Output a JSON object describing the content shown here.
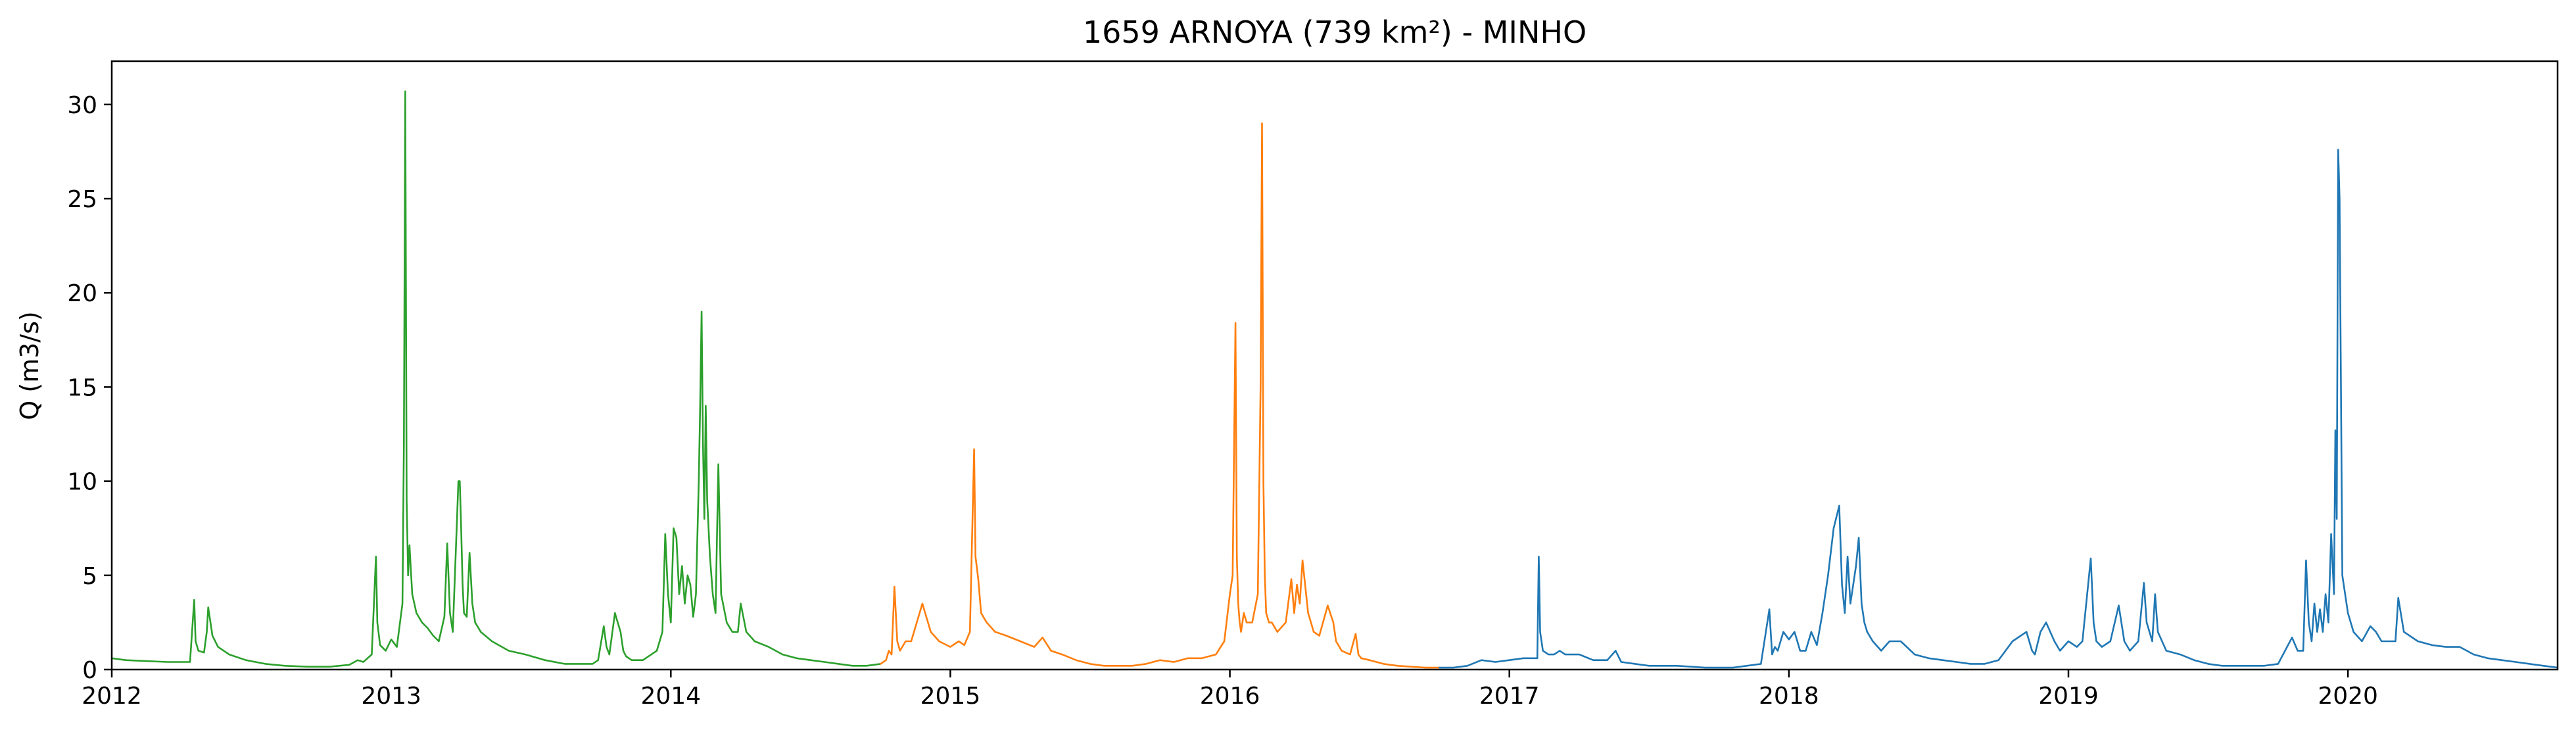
{
  "chart_data": {
    "type": "line",
    "title": "1659 ARNOYA (739 km²) - MINHO",
    "xlabel": "",
    "ylabel": "Q (m3/s)",
    "xlim": [
      2012.0,
      2020.75
    ],
    "ylim": [
      0,
      32.3
    ],
    "x_ticks": [
      2012,
      2013,
      2014,
      2015,
      2016,
      2017,
      2018,
      2019,
      2020
    ],
    "y_ticks": [
      0,
      5,
      10,
      15,
      20,
      25,
      30
    ],
    "grid": false,
    "legend": "none",
    "series": [
      {
        "color": "#2ca02c",
        "x": [
          2012.0,
          2012.05,
          2012.12,
          2012.2,
          2012.28,
          2012.295,
          2012.3,
          2012.31,
          2012.33,
          2012.34,
          2012.345,
          2012.36,
          2012.38,
          2012.42,
          2012.48,
          2012.55,
          2012.62,
          2012.7,
          2012.78,
          2012.85,
          2012.88,
          2012.9,
          2012.93,
          2012.945,
          2012.95,
          2012.96,
          2012.98,
          2013.0,
          2013.02,
          2013.04,
          2013.045,
          2013.05,
          2013.055,
          2013.06,
          2013.065,
          2013.075,
          2013.09,
          2013.11,
          2013.13,
          2013.15,
          2013.17,
          2013.19,
          2013.2,
          2013.21,
          2013.22,
          2013.235,
          2013.24,
          2013.245,
          2013.25,
          2013.255,
          2013.26,
          2013.27,
          2013.28,
          2013.29,
          2013.3,
          2013.32,
          2013.36,
          2013.42,
          2013.48,
          2013.55,
          2013.62,
          2013.68,
          2013.72,
          2013.74,
          2013.76,
          2013.77,
          2013.78,
          2013.8,
          2013.82,
          2013.83,
          2013.84,
          2013.86,
          2013.9,
          2013.95,
          2013.97,
          2013.98,
          2013.99,
          2014.0,
          2014.01,
          2014.02,
          2014.03,
          2014.04,
          2014.05,
          2014.06,
          2014.07,
          2014.08,
          2014.09,
          2014.1,
          2014.105,
          2014.11,
          2014.115,
          2014.12,
          2014.125,
          2014.13,
          2014.14,
          2014.15,
          2014.16,
          2014.17,
          2014.18,
          2014.2,
          2014.22,
          2014.24,
          2014.25,
          2014.27,
          2014.3,
          2014.35,
          2014.4,
          2014.45,
          2014.5,
          2014.55,
          2014.6,
          2014.65,
          2014.7,
          2014.75
        ],
        "values": [
          0.6,
          0.5,
          0.45,
          0.4,
          0.4,
          3.7,
          1.5,
          1.0,
          0.9,
          2.0,
          3.3,
          1.8,
          1.2,
          0.8,
          0.5,
          0.3,
          0.2,
          0.15,
          0.15,
          0.25,
          0.5,
          0.4,
          0.8,
          6.0,
          2.5,
          1.3,
          1.0,
          1.6,
          1.2,
          3.5,
          12.0,
          30.7,
          9.0,
          5.0,
          6.6,
          4.0,
          3.0,
          2.5,
          2.2,
          1.8,
          1.5,
          2.8,
          6.7,
          3.0,
          2.0,
          8.0,
          10.0,
          10.0,
          7.5,
          4.5,
          3.0,
          2.8,
          6.2,
          3.5,
          2.5,
          2.0,
          1.5,
          1.0,
          0.8,
          0.5,
          0.3,
          0.3,
          0.3,
          0.5,
          2.3,
          1.2,
          0.8,
          3.0,
          2.0,
          1.0,
          0.7,
          0.5,
          0.5,
          1.0,
          2.0,
          7.2,
          4.0,
          2.5,
          7.5,
          7.0,
          4.0,
          5.5,
          3.5,
          5.0,
          4.5,
          2.8,
          4.0,
          10.0,
          14.0,
          19.0,
          12.0,
          8.0,
          14.0,
          9.0,
          6.0,
          4.0,
          3.0,
          10.9,
          4.0,
          2.5,
          2.0,
          2.0,
          3.5,
          2.0,
          1.5,
          1.2,
          0.8,
          0.6,
          0.5,
          0.4,
          0.3,
          0.2,
          0.2,
          0.3
        ]
      },
      {
        "color": "#ff7f0e",
        "x": [
          2014.75,
          2014.77,
          2014.78,
          2014.79,
          2014.8,
          2014.81,
          2014.82,
          2014.84,
          2014.86,
          2014.88,
          2014.9,
          2014.93,
          2014.96,
          2015.0,
          2015.03,
          2015.05,
          2015.07,
          2015.085,
          2015.09,
          2015.1,
          2015.11,
          2015.13,
          2015.16,
          2015.2,
          2015.25,
          2015.3,
          2015.33,
          2015.36,
          2015.4,
          2015.45,
          2015.5,
          2015.55,
          2015.6,
          2015.65,
          2015.7,
          2015.75,
          2015.8,
          2015.85,
          2015.9,
          2015.95,
          2015.98,
          2016.0,
          2016.01,
          2016.02,
          2016.025,
          2016.03,
          2016.035,
          2016.04,
          2016.05,
          2016.06,
          2016.08,
          2016.1,
          2016.11,
          2016.115,
          2016.12,
          2016.125,
          2016.13,
          2016.14,
          2016.15,
          2016.17,
          2016.2,
          2016.22,
          2016.23,
          2016.24,
          2016.25,
          2016.26,
          2016.28,
          2016.29,
          2016.3,
          2016.32,
          2016.35,
          2016.37,
          2016.38,
          2016.4,
          2016.43,
          2016.45,
          2016.46,
          2016.47,
          2016.5,
          2016.55,
          2016.6,
          2016.65,
          2016.7,
          2016.75
        ],
        "values": [
          0.3,
          0.5,
          1.0,
          0.8,
          4.4,
          1.5,
          1.0,
          1.5,
          1.5,
          2.5,
          3.5,
          2.0,
          1.5,
          1.2,
          1.5,
          1.3,
          2.0,
          11.7,
          6.0,
          4.8,
          3.0,
          2.5,
          2.0,
          1.8,
          1.5,
          1.2,
          1.7,
          1.0,
          0.8,
          0.5,
          0.3,
          0.2,
          0.2,
          0.2,
          0.3,
          0.5,
          0.4,
          0.6,
          0.6,
          0.8,
          1.5,
          4.0,
          5.0,
          18.4,
          6.0,
          3.5,
          2.5,
          2.0,
          3.0,
          2.5,
          2.5,
          4.0,
          15.0,
          29.0,
          10.0,
          5.0,
          3.0,
          2.5,
          2.5,
          2.0,
          2.5,
          4.8,
          3.0,
          4.5,
          3.5,
          5.8,
          3.0,
          2.5,
          2.0,
          1.8,
          3.4,
          2.5,
          1.5,
          1.0,
          0.8,
          1.9,
          0.8,
          0.6,
          0.5,
          0.3,
          0.2,
          0.15,
          0.1,
          0.1
        ]
      },
      {
        "color": "#1f77b4",
        "x": [
          2016.75,
          2016.8,
          2016.85,
          2016.9,
          2016.95,
          2017.0,
          2017.05,
          2017.1,
          2017.105,
          2017.11,
          2017.12,
          2017.14,
          2017.16,
          2017.18,
          2017.2,
          2017.25,
          2017.3,
          2017.35,
          2017.38,
          2017.4,
          2017.45,
          2017.5,
          2017.6,
          2017.7,
          2017.8,
          2017.9,
          2017.93,
          2017.94,
          2017.95,
          2017.96,
          2017.98,
          2018.0,
          2018.02,
          2018.04,
          2018.06,
          2018.08,
          2018.1,
          2018.12,
          2018.14,
          2018.16,
          2018.18,
          2018.19,
          2018.2,
          2018.21,
          2018.22,
          2018.24,
          2018.25,
          2018.26,
          2018.27,
          2018.28,
          2018.3,
          2018.33,
          2018.36,
          2018.4,
          2018.45,
          2018.5,
          2018.55,
          2018.6,
          2018.65,
          2018.7,
          2018.75,
          2018.8,
          2018.85,
          2018.87,
          2018.88,
          2018.9,
          2018.92,
          2018.95,
          2018.97,
          2019.0,
          2019.03,
          2019.05,
          2019.08,
          2019.09,
          2019.1,
          2019.12,
          2019.15,
          2019.18,
          2019.2,
          2019.22,
          2019.25,
          2019.27,
          2019.28,
          2019.3,
          2019.31,
          2019.32,
          2019.35,
          2019.4,
          2019.45,
          2019.5,
          2019.55,
          2019.6,
          2019.7,
          2019.75,
          2019.8,
          2019.82,
          2019.84,
          2019.85,
          2019.86,
          2019.87,
          2019.88,
          2019.89,
          2019.9,
          2019.91,
          2019.92,
          2019.93,
          2019.94,
          2019.95,
          2019.955,
          2019.96,
          2019.965,
          2019.97,
          2019.98,
          2020.0,
          2020.02,
          2020.05,
          2020.08,
          2020.1,
          2020.12,
          2020.15,
          2020.17,
          2020.18,
          2020.2,
          2020.25,
          2020.3,
          2020.35,
          2020.4,
          2020.45,
          2020.5,
          2020.55,
          2020.6,
          2020.65,
          2020.7,
          2020.75
        ],
        "values": [
          0.1,
          0.1,
          0.2,
          0.5,
          0.4,
          0.5,
          0.6,
          0.6,
          6.0,
          2.0,
          1.0,
          0.8,
          0.8,
          1.0,
          0.8,
          0.8,
          0.5,
          0.5,
          1.0,
          0.4,
          0.3,
          0.2,
          0.2,
          0.1,
          0.1,
          0.3,
          3.2,
          0.8,
          1.2,
          1.0,
          2.0,
          1.6,
          2.0,
          1.0,
          1.0,
          2.0,
          1.3,
          3.0,
          5.0,
          7.5,
          8.7,
          4.5,
          3.0,
          6.0,
          3.5,
          5.5,
          7.0,
          3.5,
          2.5,
          2.0,
          1.5,
          1.0,
          1.5,
          1.5,
          0.8,
          0.6,
          0.5,
          0.4,
          0.3,
          0.3,
          0.5,
          1.5,
          2.0,
          1.0,
          0.8,
          2.0,
          2.5,
          1.5,
          1.0,
          1.5,
          1.2,
          1.5,
          5.9,
          2.5,
          1.5,
          1.2,
          1.5,
          3.4,
          1.5,
          1.0,
          1.5,
          4.6,
          2.5,
          1.5,
          4.0,
          2.0,
          1.0,
          0.8,
          0.5,
          0.3,
          0.2,
          0.2,
          0.2,
          0.3,
          1.7,
          1.0,
          1.0,
          5.8,
          2.5,
          1.5,
          3.5,
          2.0,
          3.2,
          2.0,
          4.0,
          2.5,
          7.2,
          4.0,
          12.7,
          8.0,
          27.6,
          25.0,
          5.0,
          3.0,
          2.0,
          1.5,
          2.3,
          2.0,
          1.5,
          1.5,
          1.5,
          3.8,
          2.0,
          1.5,
          1.3,
          1.2,
          1.2,
          0.8,
          0.6,
          0.5,
          0.4,
          0.3,
          0.2,
          0.1
        ]
      }
    ]
  }
}
